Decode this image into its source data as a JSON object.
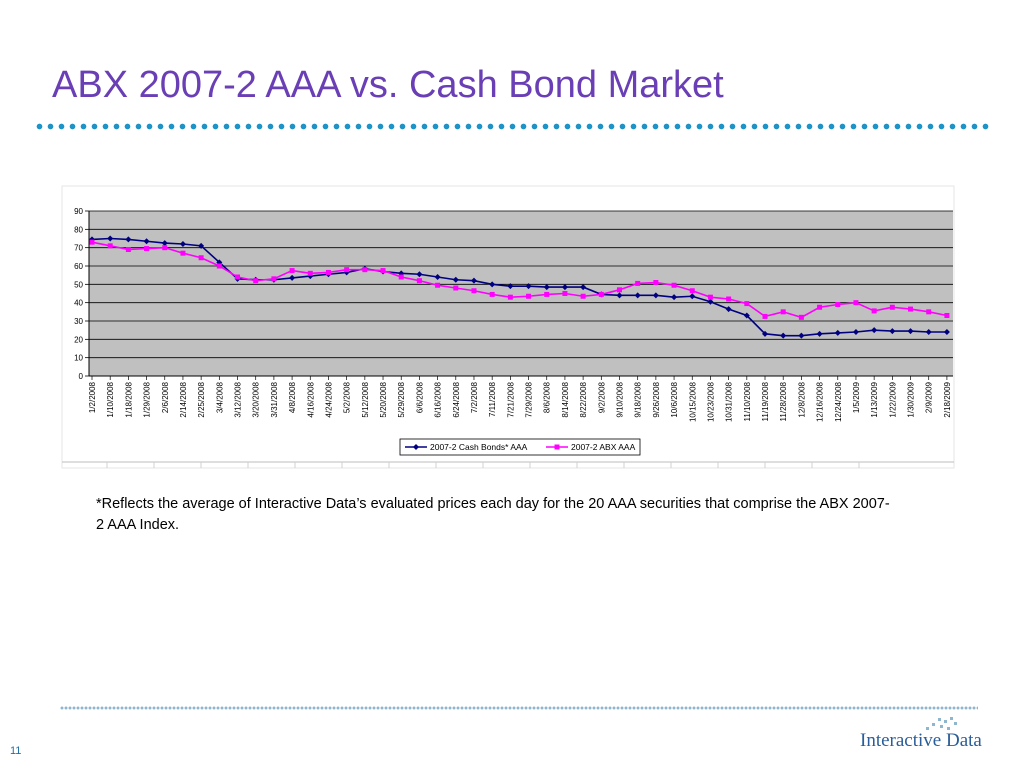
{
  "slide": {
    "title": "ABX 2007-2 AAA vs. Cash Bond Market",
    "footnote": "*Reflects the average of Interactive Data’s evaluated prices each day for the 20 AAA securities that comprise the ABX 2007-2 AAA Index.",
    "page_number": "11",
    "logo_text": "Interactive Data"
  },
  "colors": {
    "title": "#6a3fb5",
    "rule": "#1e93c7",
    "plot_background": "#c0c0c0",
    "cash_series": "#000080",
    "abx_series": "#ff00ff"
  },
  "chart_data": {
    "type": "line",
    "title": "",
    "xlabel": "",
    "ylabel": "",
    "ylim": [
      0,
      90
    ],
    "yticks": [
      0,
      10,
      20,
      30,
      40,
      50,
      60,
      70,
      80,
      90
    ],
    "grid": true,
    "legend_position": "bottom",
    "categories": [
      "1/2/2008",
      "1/10/2008",
      "1/18/2008",
      "1/29/2008",
      "2/6/2008",
      "2/14/2008",
      "2/25/2008",
      "3/4/2008",
      "3/12/2008",
      "3/20/2008",
      "3/31/2008",
      "4/8/2008",
      "4/16/2008",
      "4/24/2008",
      "5/2/2008",
      "5/12/2008",
      "5/20/2008",
      "5/29/2008",
      "6/6/2008",
      "6/16/2008",
      "6/24/2008",
      "7/2/2008",
      "7/11/2008",
      "7/21/2008",
      "7/29/2008",
      "8/6/2008",
      "8/14/2008",
      "8/22/2008",
      "9/2/2008",
      "9/10/2008",
      "9/18/2008",
      "9/26/2008",
      "10/6/2008",
      "10/15/2008",
      "10/23/2008",
      "10/31/2008",
      "11/10/2008",
      "11/19/2008",
      "11/28/2008",
      "12/8/2008",
      "12/16/2008",
      "12/24/2008",
      "1/5/2009",
      "1/13/2009",
      "1/22/2009",
      "1/30/2009",
      "2/9/2009",
      "2/18/2009"
    ],
    "series": [
      {
        "name": "2007-2 Cash Bonds* AAA",
        "marker": "diamond",
        "values": [
          74.5,
          75,
          74.5,
          73.5,
          72.5,
          72,
          71,
          62,
          53,
          52.5,
          52.5,
          53.5,
          54.5,
          55.5,
          56.5,
          58.5,
          57,
          56,
          55.5,
          54,
          52.5,
          52,
          50,
          49,
          49,
          48.5,
          48.5,
          48.5,
          44.5,
          44,
          44,
          44,
          43,
          43.5,
          40.5,
          36.5,
          33,
          23,
          22,
          22,
          23,
          23.5,
          24,
          25,
          24.5,
          24.5,
          24,
          24
        ]
      },
      {
        "name": "2007-2 ABX AAA",
        "marker": "square",
        "values": [
          73,
          71,
          69,
          69.5,
          70,
          67,
          64.5,
          60,
          54,
          52,
          53,
          57.5,
          56,
          56.5,
          58,
          58,
          57.5,
          54,
          52,
          49.5,
          48,
          46.5,
          44.5,
          43,
          43.5,
          44.5,
          45,
          43.5,
          44.5,
          47,
          50.5,
          51,
          49.5,
          46.5,
          43,
          42,
          39.5,
          32.5,
          35,
          32,
          37.5,
          39,
          40,
          35.5,
          37.5,
          36.5,
          35,
          33
        ]
      }
    ]
  }
}
